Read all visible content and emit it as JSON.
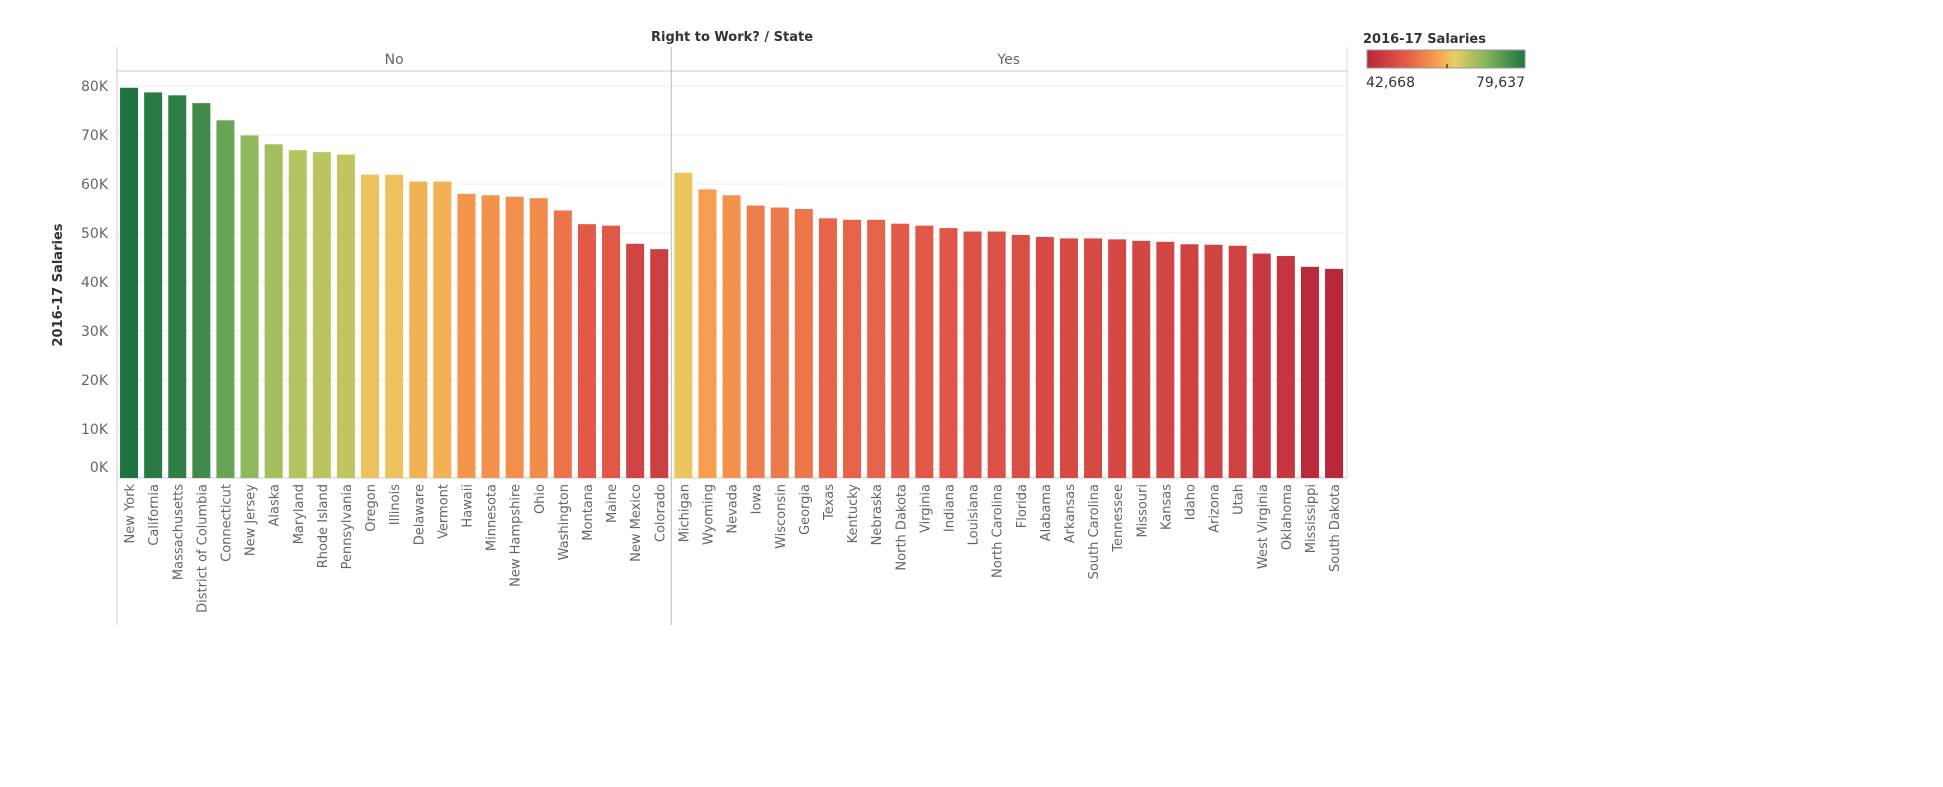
{
  "chart_data": {
    "type": "bar",
    "title": "Right to Work? / State",
    "ylabel": "2016-17 Salaries",
    "ylim": [
      0,
      85000
    ],
    "yticks": [
      "0K",
      "10K",
      "20K",
      "30K",
      "40K",
      "50K",
      "60K",
      "70K",
      "80K"
    ],
    "grid": true,
    "panes": [
      {
        "name": "No",
        "categories": [
          "New York",
          "California",
          "Massachusetts",
          "District of Columbia",
          "Connecticut",
          "New Jersey",
          "Alaska",
          "Maryland",
          "Rhode Island",
          "Pennsylvania",
          "Oregon",
          "Illinois",
          "Delaware",
          "Vermont",
          "Hawaii",
          "Minnesota",
          "New Hampshire",
          "Ohio",
          "Washington",
          "Montana",
          "Maine",
          "New Mexico",
          "Colorado"
        ],
        "values": [
          79637,
          78700,
          78100,
          76500,
          73000,
          69900,
          68100,
          66900,
          66500,
          66000,
          61900,
          61900,
          60500,
          60500,
          58000,
          57700,
          57400,
          57100,
          54600,
          51800,
          51500,
          47800,
          46700
        ]
      },
      {
        "name": "Yes",
        "categories": [
          "Michigan",
          "Wyoming",
          "Nevada",
          "Iowa",
          "Wisconsin",
          "Georgia",
          "Texas",
          "Kentucky",
          "Nebraska",
          "North Dakota",
          "Virginia",
          "Indiana",
          "Louisiana",
          "North Carolina",
          "Florida",
          "Alabama",
          "Arkansas",
          "South Carolina",
          "Tennessee",
          "Missouri",
          "Kansas",
          "Idaho",
          "Arizona",
          "Utah",
          "West Virginia",
          "Oklahoma",
          "Mississippi",
          "South Dakota"
        ],
        "values": [
          62300,
          58900,
          57700,
          55600,
          55200,
          54900,
          53000,
          52700,
          52700,
          51900,
          51500,
          51000,
          50300,
          50300,
          49600,
          49200,
          48900,
          48900,
          48700,
          48400,
          48200,
          47700,
          47600,
          47400,
          45800,
          45300,
          43100,
          42668
        ]
      }
    ],
    "legend": {
      "title": "2016-17 Salaries",
      "min_label": "42,668",
      "max_label": "79,637",
      "min": 42668,
      "max": 79637,
      "placement": "top-right",
      "colors": [
        "#b8283c",
        "#e45a48",
        "#f7a24e",
        "#e8cf62",
        "#86b65c",
        "#1e7440"
      ]
    }
  }
}
